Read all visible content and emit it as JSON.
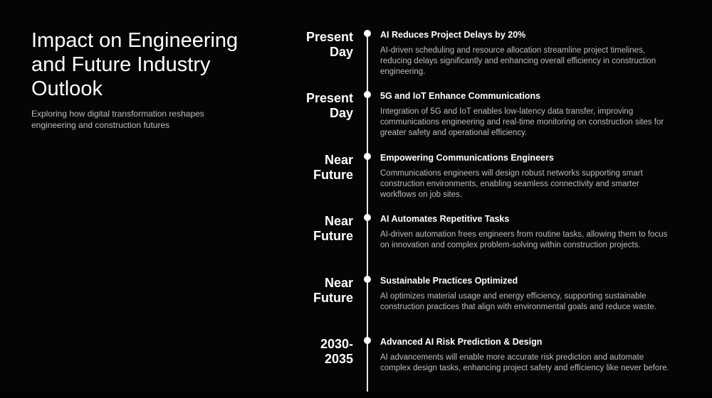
{
  "header": {
    "title": "Impact on Engineering and Future Industry Outlook",
    "subtitle": "Exploring how digital transformation reshapes engineering and construction futures"
  },
  "timeline": {
    "items": [
      {
        "time": "Present Day",
        "title": "AI Reduces Project Delays by 20%",
        "description": "AI-driven scheduling and resource allocation streamline project timelines, reducing delays significantly and enhancing overall efficiency in construction engineering."
      },
      {
        "time": "Present Day",
        "title": "5G and IoT Enhance Communications",
        "description": "Integration of 5G and IoT enables low-latency data transfer, improving communications engineering and real-time monitoring on construction sites for greater safety and operational efficiency."
      },
      {
        "time": "Near Future",
        "title": "Empowering Communications Engineers",
        "description": "Communications engineers will design robust networks supporting smart construction environments, enabling seamless connectivity and smarter workflows on job sites."
      },
      {
        "time": "Near Future",
        "title": "AI Automates Repetitive Tasks",
        "description": "AI-driven automation frees engineers from routine tasks, allowing them to focus on innovation and complex problem-solving within construction projects."
      },
      {
        "time": "Near Future",
        "title": "Sustainable Practices Optimized",
        "description": "AI optimizes material usage and energy efficiency, supporting sustainable construction practices that align with environmental goals and reduce waste."
      },
      {
        "time": "2030-2035",
        "title": "Advanced AI Risk Prediction & Design",
        "description": "AI advancements will enable more accurate risk prediction and automate complex design tasks, enhancing project safety and efficiency like never before."
      }
    ]
  }
}
